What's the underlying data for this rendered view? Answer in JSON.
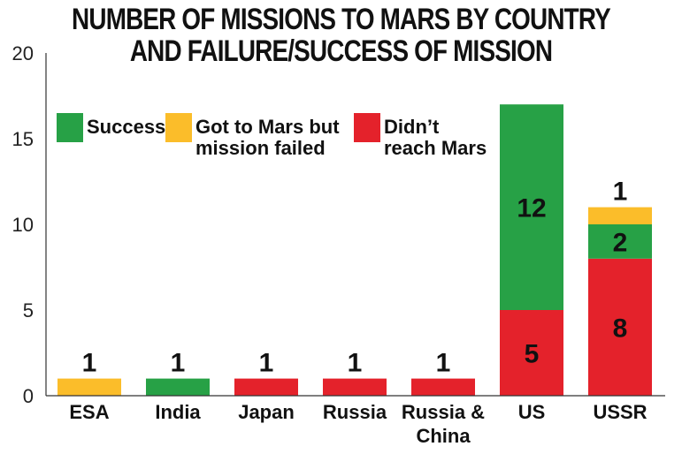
{
  "chart_data": {
    "type": "bar",
    "stacked": true,
    "title_lines": [
      "NUMBER OF MISSIONS TO MARS BY COUNTRY",
      "AND FAILURE/SUCCESS OF MISSION"
    ],
    "categories": [
      "ESA",
      "India",
      "Japan",
      "Russia",
      "Russia & China",
      "US",
      "USSR"
    ],
    "category_label_lines": [
      [
        "ESA"
      ],
      [
        "India"
      ],
      [
        "Japan"
      ],
      [
        "Russia"
      ],
      [
        "Russia &",
        "China"
      ],
      [
        "US"
      ],
      [
        "USSR"
      ]
    ],
    "series": [
      {
        "name": "Didn't reach Mars",
        "legend_lines": [
          "Didn’t",
          "reach Mars"
        ],
        "color": "#e4222b",
        "values": [
          0,
          0,
          1,
          1,
          1,
          5,
          8
        ]
      },
      {
        "name": "Success",
        "legend_lines": [
          "Success"
        ],
        "color": "#27a146",
        "values": [
          0,
          1,
          0,
          0,
          0,
          12,
          2
        ]
      },
      {
        "name": "Got to Mars but mission failed",
        "legend_lines": [
          "Got to Mars but",
          "mission failed"
        ],
        "color": "#fbbd2a",
        "values": [
          1,
          0,
          0,
          0,
          0,
          0,
          1
        ]
      }
    ],
    "data_labels": [
      {
        "category": "ESA",
        "text": "1",
        "position": "above"
      },
      {
        "category": "India",
        "text": "1",
        "position": "above"
      },
      {
        "category": "Japan",
        "text": "1",
        "position": "above"
      },
      {
        "category": "Russia",
        "text": "1",
        "position": "above"
      },
      {
        "category": "Russia & China",
        "text": "1",
        "position": "above"
      },
      {
        "category": "US",
        "series": "Success",
        "text": "12",
        "position": "inside"
      },
      {
        "category": "US",
        "series": "Didn't reach Mars",
        "text": "5",
        "position": "inside"
      },
      {
        "category": "USSR",
        "series": "Got to Mars but mission failed",
        "text": "1",
        "position": "above"
      },
      {
        "category": "USSR",
        "series": "Success",
        "text": "2",
        "position": "inside"
      },
      {
        "category": "USSR",
        "series": "Didn't reach Mars",
        "text": "8",
        "position": "inside"
      }
    ],
    "yticks": [
      0,
      5,
      10,
      15,
      20
    ],
    "ylim": [
      0,
      20
    ],
    "xlabel": "",
    "ylabel": "",
    "grid": false,
    "legend_position": "top-left",
    "legend_order": [
      "Success",
      "Got to Mars but mission failed",
      "Didn't reach Mars"
    ]
  }
}
